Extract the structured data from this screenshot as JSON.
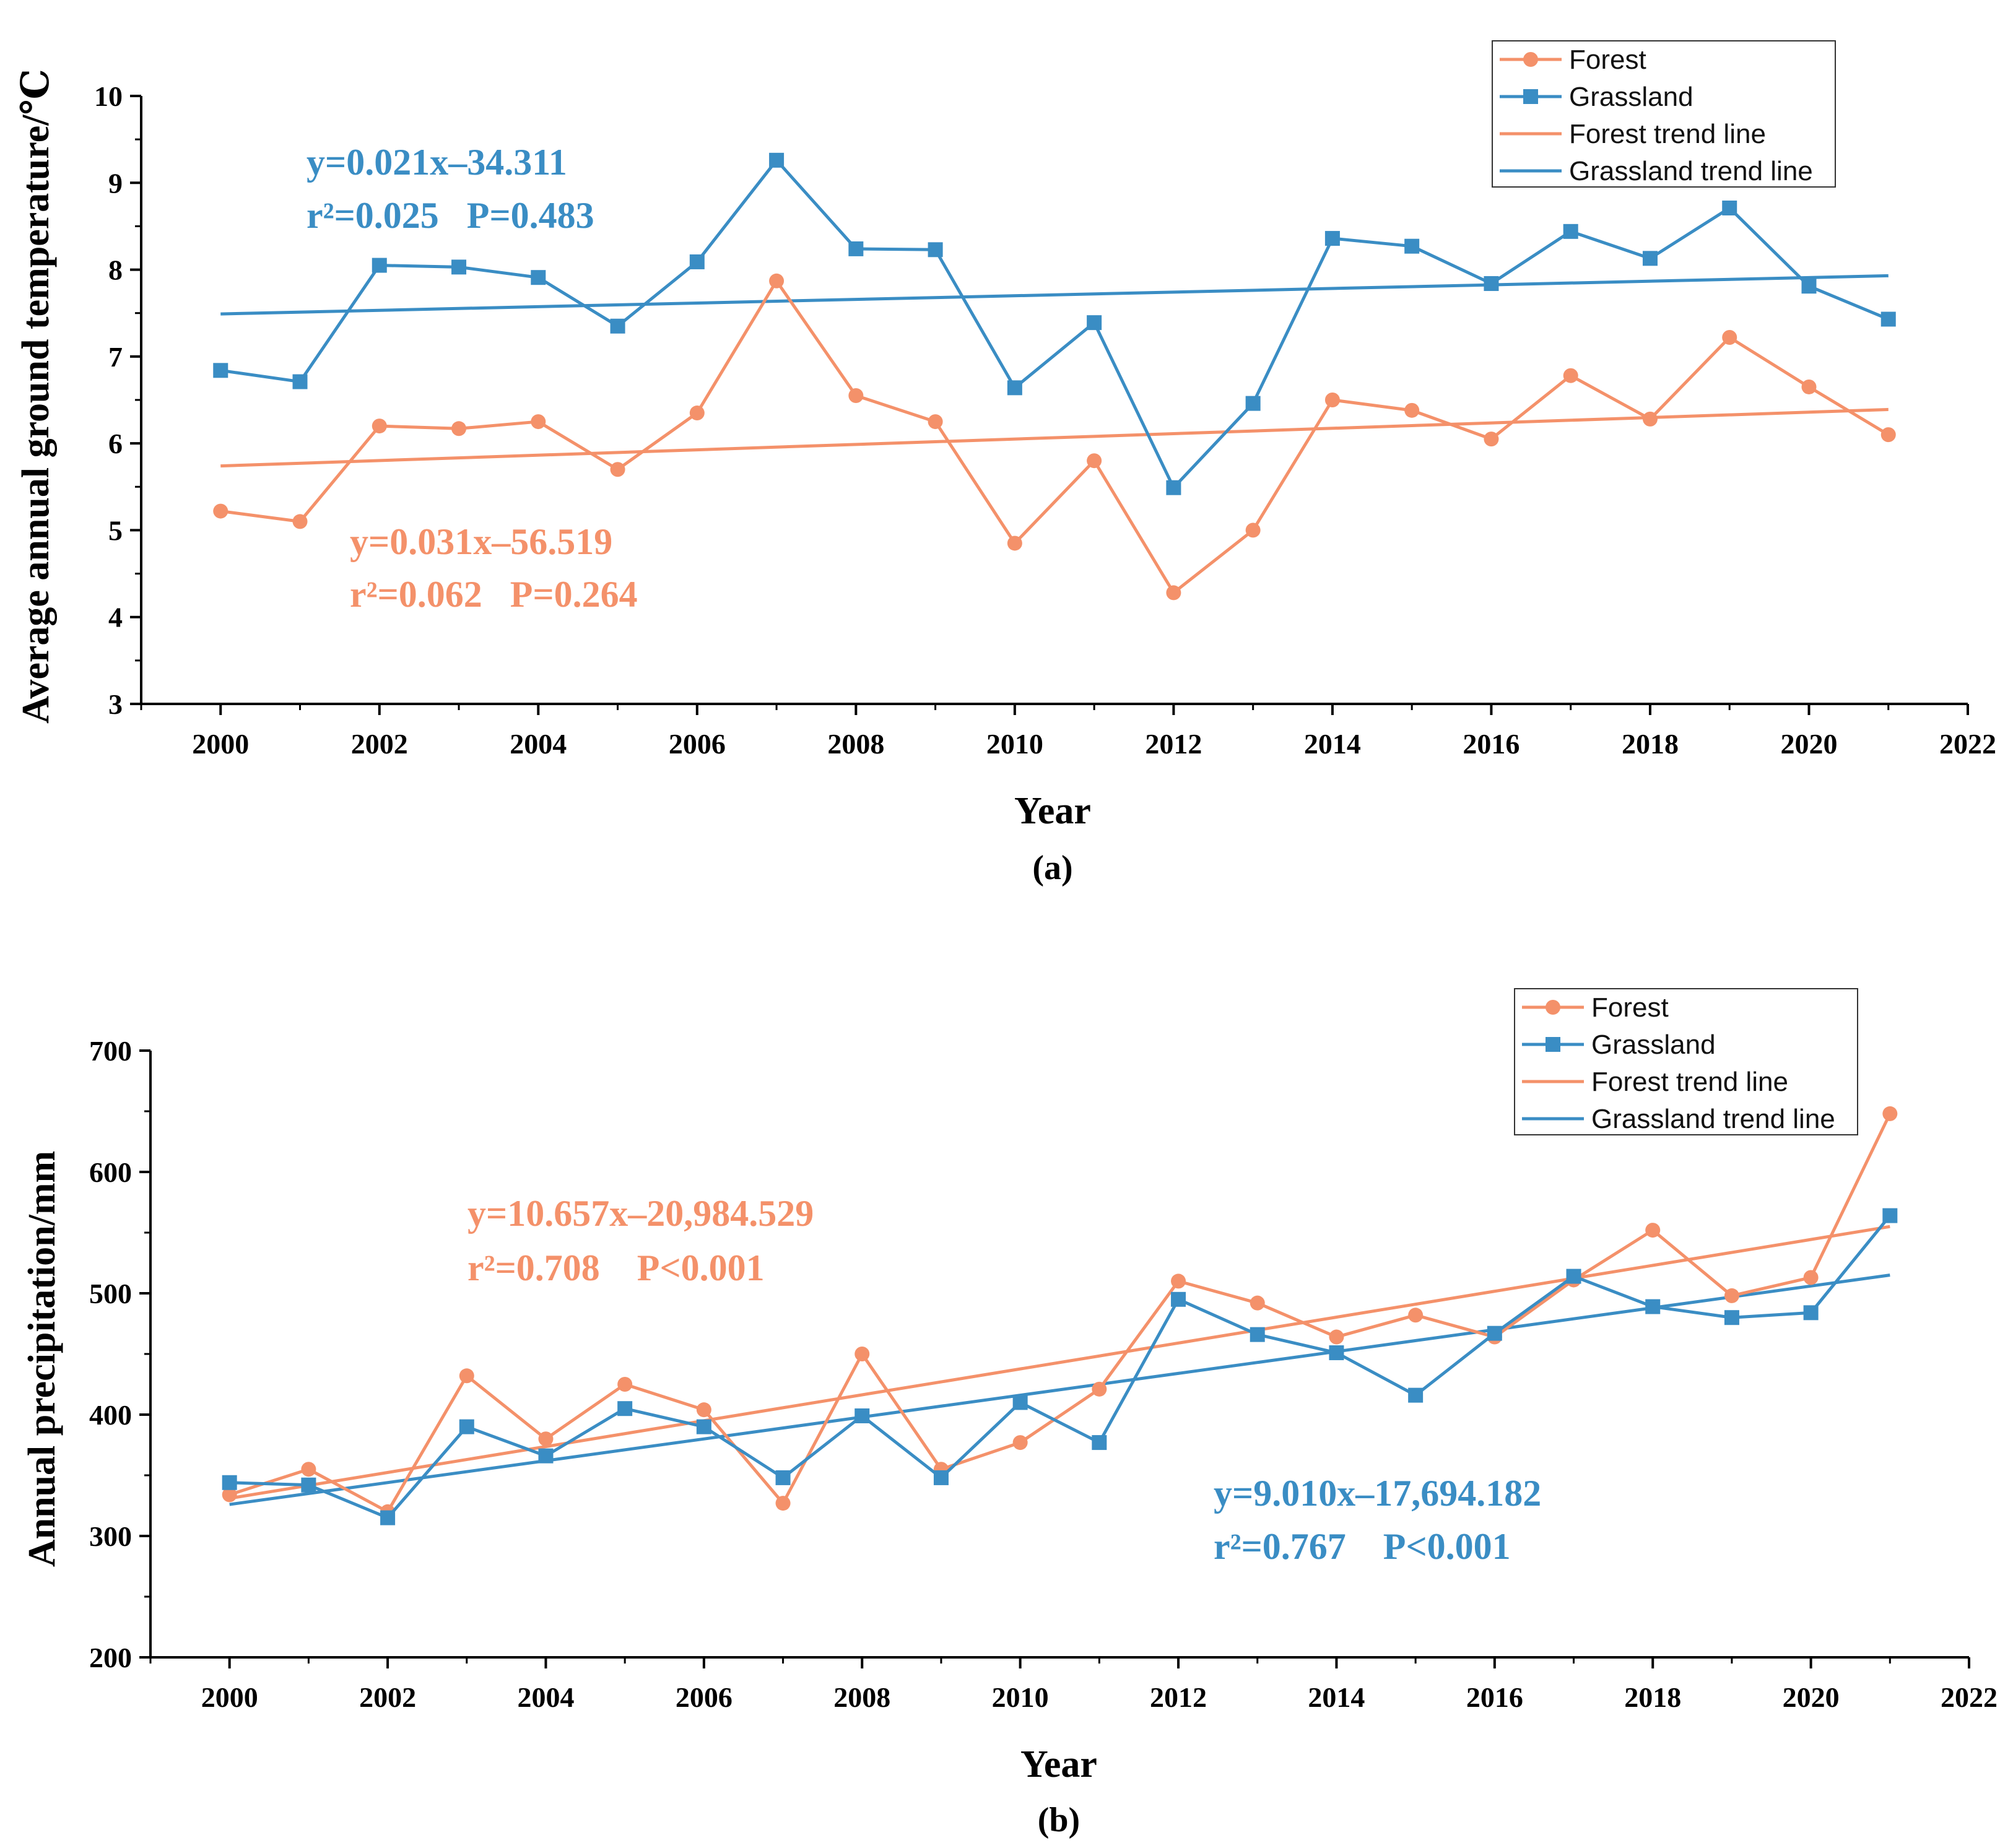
{
  "colors": {
    "forest": "#F4916A",
    "grassland": "#3A8DC4",
    "axis": "#000000"
  },
  "chart_data": [
    {
      "type": "line",
      "panel_label": "(a)",
      "title": "",
      "xlabel": "Year",
      "ylabel": "Average annual ground temperature/℃",
      "xlim": [
        1999,
        2022
      ],
      "ylim": [
        3,
        10
      ],
      "xticks": [
        2000,
        2002,
        2004,
        2006,
        2008,
        2010,
        2012,
        2014,
        2016,
        2018,
        2020,
        2022
      ],
      "yticks": [
        3,
        4,
        5,
        6,
        7,
        8,
        9,
        10
      ],
      "x": [
        2000,
        2001,
        2002,
        2003,
        2004,
        2005,
        2006,
        2007,
        2008,
        2009,
        2010,
        2011,
        2012,
        2013,
        2014,
        2015,
        2016,
        2017,
        2018,
        2019,
        2020,
        2021
      ],
      "series": [
        {
          "name": "Forest",
          "color_key": "forest",
          "marker": "circle",
          "values": [
            5.22,
            5.1,
            6.2,
            6.17,
            6.25,
            5.7,
            6.35,
            7.87,
            6.55,
            6.25,
            4.85,
            5.8,
            4.28,
            5.0,
            6.5,
            6.38,
            6.05,
            6.78,
            6.28,
            7.22,
            6.65,
            6.1
          ]
        },
        {
          "name": "Grassland",
          "color_key": "grassland",
          "marker": "square",
          "values": [
            6.84,
            6.71,
            8.05,
            8.03,
            7.91,
            7.35,
            8.09,
            9.26,
            8.24,
            8.23,
            6.64,
            7.39,
            5.49,
            6.46,
            8.36,
            8.27,
            7.84,
            8.44,
            8.13,
            8.71,
            7.81,
            7.43
          ]
        }
      ],
      "trend_lines": [
        {
          "name": "Forest trend line",
          "color_key": "forest",
          "x": [
            2000,
            2021
          ],
          "y": [
            5.74,
            6.39
          ]
        },
        {
          "name": "Grassland trend line",
          "color_key": "grassland",
          "x": [
            2000,
            2021
          ],
          "y": [
            7.49,
            7.93
          ]
        }
      ],
      "legend": [
        "Forest",
        "Grassland",
        "Forest trend line",
        "Grassland trend line"
      ],
      "legend_position": "top-right",
      "annotations": {
        "grassland_eq": "y=0.021x–34.311",
        "grassland_stats": "r²=0.025   P=0.483",
        "forest_eq": "y=0.031x–56.519",
        "forest_stats": "r²=0.062   P=0.264"
      }
    },
    {
      "type": "line",
      "panel_label": "(b)",
      "title": "",
      "xlabel": "Year",
      "ylabel": "Annual precipitation/mm",
      "xlim": [
        1999,
        2022
      ],
      "ylim": [
        200,
        700
      ],
      "xticks": [
        2000,
        2002,
        2004,
        2006,
        2008,
        2010,
        2012,
        2014,
        2016,
        2018,
        2020,
        2022
      ],
      "yticks": [
        200,
        300,
        400,
        500,
        600,
        700
      ],
      "x": [
        2000,
        2001,
        2002,
        2003,
        2004,
        2005,
        2006,
        2007,
        2008,
        2009,
        2010,
        2011,
        2012,
        2013,
        2014,
        2015,
        2016,
        2017,
        2018,
        2019,
        2020,
        2021
      ],
      "series": [
        {
          "name": "Forest",
          "color_key": "forest",
          "marker": "circle",
          "values": [
            334,
            355,
            320,
            432,
            380,
            425,
            404,
            327,
            450,
            355,
            377,
            421,
            510,
            492,
            464,
            482,
            464,
            511,
            552,
            498,
            513,
            648
          ]
        },
        {
          "name": "Grassland",
          "color_key": "grassland",
          "marker": "square",
          "values": [
            344,
            342,
            315,
            390,
            366,
            405,
            390,
            348,
            399,
            348,
            410,
            377,
            495,
            466,
            451,
            416,
            467,
            514,
            489,
            480,
            484,
            564
          ]
        }
      ],
      "trend_lines": [
        {
          "name": "Forest trend line",
          "color_key": "forest",
          "x": [
            2000,
            2021
          ],
          "y": [
            331,
            555
          ]
        },
        {
          "name": "Grassland trend line",
          "color_key": "grassland",
          "x": [
            2000,
            2021
          ],
          "y": [
            326,
            515
          ]
        }
      ],
      "legend": [
        "Forest",
        "Grassland",
        "Forest trend line",
        "Grassland trend line"
      ],
      "legend_position": "top-right",
      "annotations": {
        "forest_eq": "y=10.657x–20,984.529",
        "forest_stats": "r²=0.708    P<0.001",
        "grassland_eq": "y=9.010x–17,694.182",
        "grassland_stats": "r²=0.767    P<0.001"
      }
    }
  ]
}
